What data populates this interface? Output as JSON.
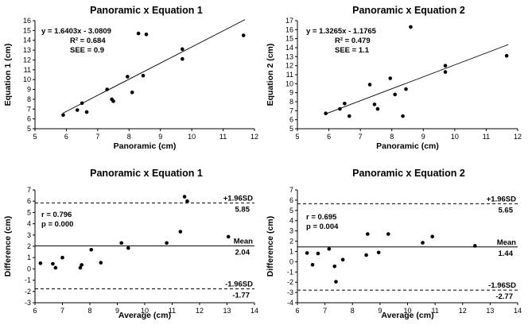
{
  "chart_data": [
    {
      "type": "scatter",
      "title": "Panoramic x Equation 1",
      "xlabel": "Panoramic (cm)",
      "ylabel": "Equation 1 (cm)",
      "xlim": [
        5,
        12
      ],
      "ylim": [
        5,
        16
      ],
      "xticks": [
        "5",
        "6",
        "7",
        "8",
        "9",
        "10",
        "11",
        "12"
      ],
      "yticks": [
        "5",
        "6",
        "7",
        "8",
        "9",
        "10",
        "11",
        "12",
        "13",
        "14",
        "15",
        "16"
      ],
      "x": [
        5.9,
        6.35,
        6.5,
        6.65,
        7.3,
        7.45,
        7.5,
        7.95,
        8.1,
        8.3,
        8.45,
        8.55,
        9.7,
        9.7,
        11.65
      ],
      "y": [
        6.4,
        6.9,
        7.6,
        6.7,
        9.0,
        8.0,
        7.8,
        10.3,
        8.7,
        14.7,
        10.4,
        14.6,
        12.1,
        13.1,
        14.5
      ],
      "trendline": {
        "slope": 1.6403,
        "intercept": -3.0809,
        "x_range": [
          5.9,
          11.7
        ]
      },
      "annotations": [
        "y = 1.6403x - 3.0809",
        "R² = 0.684",
        "SEE = 0.9"
      ]
    },
    {
      "type": "scatter",
      "title": "Panoramic x Equation 2",
      "xlabel": "Panoramic (cm)",
      "ylabel": "Equation 2 (cm)",
      "xlim": [
        5,
        12
      ],
      "ylim": [
        5,
        17
      ],
      "xticks": [
        "5",
        "6",
        "7",
        "8",
        "9",
        "10",
        "11",
        "12"
      ],
      "yticks": [
        "5",
        "6",
        "7",
        "8",
        "9",
        "10",
        "11",
        "12",
        "13",
        "14",
        "15",
        "16",
        "17"
      ],
      "x": [
        5.9,
        6.35,
        6.5,
        6.65,
        7.3,
        7.45,
        7.55,
        7.95,
        8.1,
        8.35,
        8.45,
        8.6,
        9.7,
        9.7,
        11.65
      ],
      "y": [
        6.7,
        7.2,
        7.8,
        6.4,
        9.9,
        7.7,
        7.2,
        10.6,
        8.8,
        6.4,
        9.4,
        16.3,
        11.3,
        12.0,
        13.1
      ],
      "trendline": {
        "slope": 1.3265,
        "intercept": -1.1765,
        "x_range": [
          5.9,
          11.7
        ]
      },
      "annotations": [
        "y = 1.3265x - 1.1765",
        "R² = 0.479",
        "SEE = 1.1"
      ]
    },
    {
      "type": "scatter",
      "title": "Panoramic x Equation 1",
      "xlabel": "Average (cm)",
      "ylabel": "Difference (cm)",
      "xlim": [
        6,
        14
      ],
      "ylim": [
        -3,
        7
      ],
      "xticks": [
        "6",
        "7",
        "8",
        "9",
        "10",
        "11",
        "12",
        "13",
        "14"
      ],
      "yticks": [
        "-3",
        "-2",
        "-1",
        "0",
        "1",
        "2",
        "3",
        "4",
        "5",
        "6",
        "7"
      ],
      "x": [
        6.2,
        6.65,
        6.75,
        7.0,
        7.65,
        7.7,
        8.05,
        8.4,
        9.15,
        9.4,
        10.8,
        11.3,
        11.45,
        11.55,
        13.05
      ],
      "y": [
        0.5,
        0.45,
        0.1,
        1.0,
        0.1,
        0.35,
        1.7,
        0.55,
        2.3,
        1.85,
        2.3,
        3.3,
        6.4,
        6.0,
        2.85
      ],
      "mean": {
        "value": 2.04,
        "label": "Mean",
        "value_label": "2.04"
      },
      "upper_loa": {
        "value": 5.85,
        "label": "+1.96SD",
        "value_label": "5.85"
      },
      "lower_loa": {
        "value": -1.77,
        "label": "-1.96SD",
        "value_label": "-1.77"
      },
      "annotations": [
        "r = 0.796",
        "p = 0.000"
      ]
    },
    {
      "type": "scatter",
      "title": "Panoramic x Equation 2",
      "xlabel": "Average (cm)",
      "ylabel": "Difference (cm)",
      "xlim": [
        6,
        14
      ],
      "ylim": [
        -4,
        7
      ],
      "xticks": [
        "6",
        "7",
        "8",
        "9",
        "10",
        "11",
        "12",
        "13",
        "14"
      ],
      "yticks": [
        "-4",
        "-3",
        "-2",
        "-1",
        "0",
        "1",
        "2",
        "3",
        "4",
        "5",
        "6",
        "7"
      ],
      "x": [
        6.35,
        6.55,
        6.75,
        7.15,
        7.35,
        7.4,
        7.65,
        8.5,
        8.55,
        8.95,
        9.3,
        10.55,
        10.9,
        12.45
      ],
      "y": [
        0.85,
        -0.3,
        0.8,
        1.25,
        -0.45,
        -1.95,
        0.2,
        0.65,
        2.7,
        0.9,
        2.7,
        1.85,
        2.45,
        1.55
      ],
      "mean": {
        "value": 1.44,
        "label": "Mean",
        "value_label": "1.44"
      },
      "upper_loa": {
        "value": 5.65,
        "label": "+1.96SD",
        "value_label": "5.65"
      },
      "lower_loa": {
        "value": -2.77,
        "label": "-1.96SD",
        "value_label": "-2.77"
      },
      "annotations": [
        "r = 0.695",
        "p = 0.004"
      ]
    }
  ]
}
